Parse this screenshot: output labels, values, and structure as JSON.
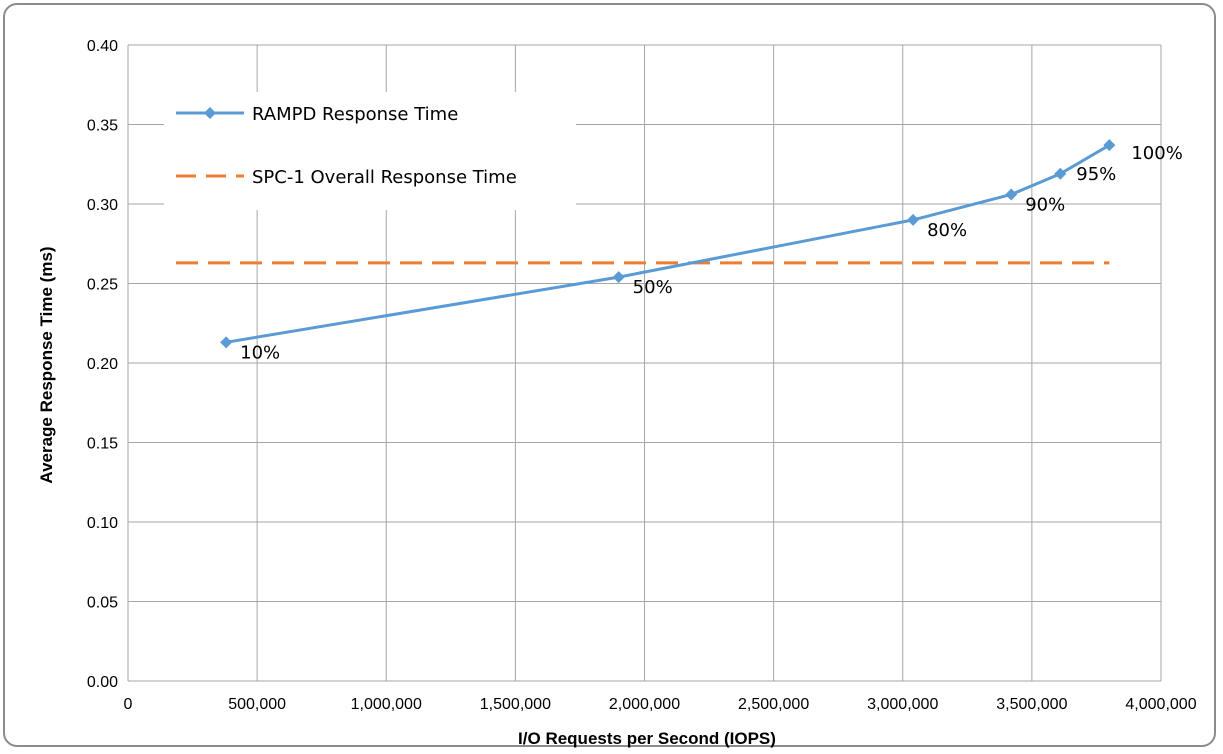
{
  "chart_data": {
    "type": "line",
    "xlabel": "I/O Requests per Second (IOPS)",
    "ylabel": "Average Response Time (ms)",
    "xlim": [
      0,
      4000000
    ],
    "ylim": [
      0,
      0.4
    ],
    "x_ticks": [
      0,
      500000,
      1000000,
      1500000,
      2000000,
      2500000,
      3000000,
      3500000,
      4000000
    ],
    "x_tick_labels": [
      "0",
      "500,000",
      "1,000,000",
      "1,500,000",
      "2,000,000",
      "2,500,000",
      "3,000,000",
      "3,500,000",
      "4,000,000"
    ],
    "y_ticks": [
      0,
      0.05,
      0.1,
      0.15,
      0.2,
      0.25,
      0.3,
      0.35,
      0.4
    ],
    "y_tick_labels": [
      "0.00",
      "0.05",
      "0.10",
      "0.15",
      "0.20",
      "0.25",
      "0.30",
      "0.35",
      "0.40"
    ],
    "grid": true,
    "legend_position": "top-left",
    "series": [
      {
        "name": "RAMPD Response Time",
        "style": "solid-line-diamond-markers",
        "color": "#5b9bd5",
        "points": [
          {
            "x": 380000,
            "y": 0.213,
            "label": "10%"
          },
          {
            "x": 1900000,
            "y": 0.254,
            "label": "50%"
          },
          {
            "x": 3040000,
            "y": 0.29,
            "label": "80%"
          },
          {
            "x": 3420000,
            "y": 0.306,
            "label": "90%"
          },
          {
            "x": 3610000,
            "y": 0.319,
            "label": "95%"
          },
          {
            "x": 3800000,
            "y": 0.337,
            "label": "100%"
          }
        ]
      },
      {
        "name": "SPC-1 Overall Response Time",
        "style": "dashed-line",
        "color": "#ed7d31",
        "points": [
          {
            "x": 0,
            "y": 0.263
          },
          {
            "x": 3800000,
            "y": 0.263
          }
        ]
      }
    ]
  }
}
